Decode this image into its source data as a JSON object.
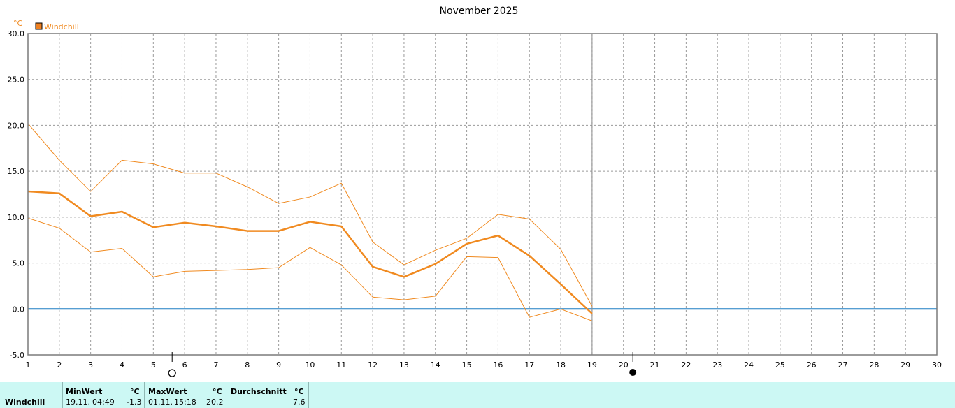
{
  "chart_data": {
    "type": "line",
    "title": "November 2025",
    "ylabel": "°C",
    "legend": "Windchill",
    "x": [
      1,
      2,
      3,
      4,
      5,
      6,
      7,
      8,
      9,
      10,
      11,
      12,
      13,
      14,
      15,
      16,
      17,
      18,
      19
    ],
    "xlim": [
      1,
      30
    ],
    "ylim": [
      -5,
      30
    ],
    "yticks": [
      "30.0",
      "25.0",
      "20.0",
      "15.0",
      "10.0",
      "5.0",
      "0.0",
      "-5.0"
    ],
    "xticks": [
      "1",
      "2",
      "3",
      "4",
      "5",
      "6",
      "7",
      "8",
      "9",
      "10",
      "11",
      "12",
      "13",
      "14",
      "15",
      "16",
      "17",
      "18",
      "19",
      "20",
      "21",
      "22",
      "23",
      "24",
      "25",
      "26",
      "27",
      "28",
      "29",
      "30"
    ],
    "series": [
      {
        "role": "max",
        "values": [
          20.2,
          16.2,
          12.8,
          16.2,
          15.8,
          14.8,
          14.8,
          13.3,
          11.5,
          12.2,
          13.7,
          7.3,
          4.8,
          6.4,
          7.7,
          10.3,
          9.8,
          6.5,
          0.3
        ]
      },
      {
        "role": "avg",
        "values": [
          12.8,
          12.6,
          10.1,
          10.6,
          8.9,
          9.4,
          9.0,
          8.5,
          8.5,
          9.5,
          9.0,
          4.6,
          3.5,
          4.9,
          7.1,
          8.0,
          5.8,
          2.7,
          -0.5
        ]
      },
      {
        "role": "min",
        "values": [
          9.9,
          8.8,
          6.2,
          6.6,
          3.5,
          4.1,
          4.2,
          4.3,
          4.5,
          6.7,
          4.8,
          1.3,
          1.0,
          1.4,
          5.7,
          5.6,
          -0.9,
          0.0,
          -1.3
        ]
      }
    ],
    "reference_line": 0,
    "current_day": 19,
    "moon_phases": [
      {
        "day": 5.6,
        "phase": "full"
      },
      {
        "day": 20.3,
        "phase": "new"
      }
    ],
    "grid": true,
    "colors": {
      "line": "#f08a20",
      "zero_line": "#1f7fc4",
      "legend_box": "#ee8020",
      "grid": "#9a9a9a",
      "axis": "#7a7a7a"
    }
  },
  "summary": {
    "row_label": "Windchill",
    "min_header": "MinWert",
    "min_unit": "°C",
    "min_date": "19.11.",
    "min_time": "04:49",
    "min_value": "-1.3",
    "max_header": "MaxWert",
    "max_unit": "°C",
    "max_date": "01.11.",
    "max_time": "15:18",
    "max_value": "20.2",
    "avg_header": "Durchschnitt",
    "avg_unit": "°C",
    "avg_value": "7.6",
    "background": "#ccf8f4"
  }
}
